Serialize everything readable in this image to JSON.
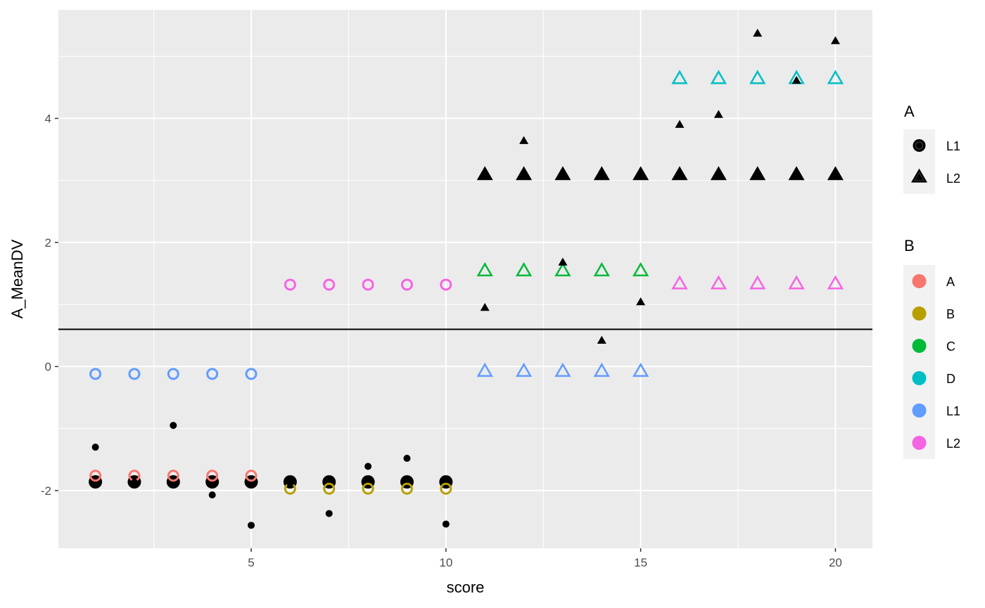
{
  "chart_data": {
    "type": "scatter",
    "xlabel": "score",
    "ylabel": "A_MeanDV",
    "xlim": [
      0.05,
      20.95
    ],
    "ylim": [
      -2.93,
      5.75
    ],
    "x_ticks": [
      5,
      10,
      15,
      20
    ],
    "y_ticks": [
      -2,
      0,
      2,
      4
    ],
    "grid": true,
    "reference_line_y": 0.6,
    "legend_position": "right",
    "legends": {
      "shape": {
        "title": "A",
        "items": [
          {
            "label": "L1",
            "shape": "circle"
          },
          {
            "label": "L2",
            "shape": "triangle"
          }
        ]
      },
      "color": {
        "title": "B",
        "items": [
          {
            "label": "A",
            "color": "#F8766D"
          },
          {
            "label": "B",
            "color": "#B79F00"
          },
          {
            "label": "C",
            "color": "#00BA38"
          },
          {
            "label": "D",
            "color": "#00BFC4"
          },
          {
            "label": "L1",
            "color": "#619CFF"
          },
          {
            "label": "L2",
            "color": "#F564E3"
          }
        ]
      }
    },
    "series": [
      {
        "role": "raw observations",
        "marker": "small-filled",
        "color": "#000000",
        "points": [
          {
            "x": 1,
            "y": -1.3,
            "A": "L1"
          },
          {
            "x": 2,
            "y": -1.87,
            "A": "L1"
          },
          {
            "x": 3,
            "y": -0.95,
            "A": "L1"
          },
          {
            "x": 4,
            "y": -2.07,
            "A": "L1"
          },
          {
            "x": 5,
            "y": -2.56,
            "A": "L1"
          },
          {
            "x": 6,
            "y": -1.88,
            "A": "L1"
          },
          {
            "x": 7,
            "y": -2.37,
            "A": "L1"
          },
          {
            "x": 8,
            "y": -1.61,
            "A": "L1"
          },
          {
            "x": 9,
            "y": -1.48,
            "A": "L1"
          },
          {
            "x": 10,
            "y": -2.54,
            "A": "L1"
          },
          {
            "x": 11,
            "y": 0.94,
            "A": "L2"
          },
          {
            "x": 12,
            "y": 3.63,
            "A": "L2"
          },
          {
            "x": 13,
            "y": 1.67,
            "A": "L2"
          },
          {
            "x": 14,
            "y": 0.41,
            "A": "L2"
          },
          {
            "x": 15,
            "y": 1.03,
            "A": "L2"
          },
          {
            "x": 16,
            "y": 3.89,
            "A": "L2"
          },
          {
            "x": 17,
            "y": 4.05,
            "A": "L2"
          },
          {
            "x": 18,
            "y": 5.36,
            "A": "L2"
          },
          {
            "x": 19,
            "y": 4.6,
            "A": "L2"
          },
          {
            "x": 20,
            "y": 5.24,
            "A": "L2"
          }
        ]
      },
      {
        "role": "mean by A",
        "marker": "large-filled",
        "color": "#000000",
        "points": [
          {
            "x": 1,
            "y": -1.86,
            "A": "L1"
          },
          {
            "x": 2,
            "y": -1.86,
            "A": "L1"
          },
          {
            "x": 3,
            "y": -1.86,
            "A": "L1"
          },
          {
            "x": 4,
            "y": -1.86,
            "A": "L1"
          },
          {
            "x": 5,
            "y": -1.86,
            "A": "L1"
          },
          {
            "x": 6,
            "y": -1.86,
            "A": "L1"
          },
          {
            "x": 7,
            "y": -1.86,
            "A": "L1"
          },
          {
            "x": 8,
            "y": -1.86,
            "A": "L1"
          },
          {
            "x": 9,
            "y": -1.86,
            "A": "L1"
          },
          {
            "x": 10,
            "y": -1.86,
            "A": "L1"
          },
          {
            "x": 11,
            "y": 3.08,
            "A": "L2"
          },
          {
            "x": 12,
            "y": 3.08,
            "A": "L2"
          },
          {
            "x": 13,
            "y": 3.08,
            "A": "L2"
          },
          {
            "x": 14,
            "y": 3.08,
            "A": "L2"
          },
          {
            "x": 15,
            "y": 3.08,
            "A": "L2"
          },
          {
            "x": 16,
            "y": 3.08,
            "A": "L2"
          },
          {
            "x": 17,
            "y": 3.08,
            "A": "L2"
          },
          {
            "x": 18,
            "y": 3.08,
            "A": "L2"
          },
          {
            "x": 19,
            "y": 3.08,
            "A": "L2"
          },
          {
            "x": 20,
            "y": 3.08,
            "A": "L2"
          }
        ]
      },
      {
        "role": "mean by B",
        "marker": "open",
        "points": [
          {
            "x": 1,
            "y": -1.76,
            "A": "L1",
            "B": "A"
          },
          {
            "x": 2,
            "y": -1.76,
            "A": "L1",
            "B": "A"
          },
          {
            "x": 3,
            "y": -1.76,
            "A": "L1",
            "B": "A"
          },
          {
            "x": 4,
            "y": -1.76,
            "A": "L1",
            "B": "A"
          },
          {
            "x": 5,
            "y": -1.76,
            "A": "L1",
            "B": "A"
          },
          {
            "x": 6,
            "y": -1.97,
            "A": "L1",
            "B": "B"
          },
          {
            "x": 7,
            "y": -1.97,
            "A": "L1",
            "B": "B"
          },
          {
            "x": 8,
            "y": -1.97,
            "A": "L1",
            "B": "B"
          },
          {
            "x": 9,
            "y": -1.97,
            "A": "L1",
            "B": "B"
          },
          {
            "x": 10,
            "y": -1.97,
            "A": "L1",
            "B": "B"
          },
          {
            "x": 11,
            "y": 1.53,
            "A": "L2",
            "B": "C"
          },
          {
            "x": 12,
            "y": 1.53,
            "A": "L2",
            "B": "C"
          },
          {
            "x": 13,
            "y": 1.53,
            "A": "L2",
            "B": "C"
          },
          {
            "x": 14,
            "y": 1.53,
            "A": "L2",
            "B": "C"
          },
          {
            "x": 15,
            "y": 1.53,
            "A": "L2",
            "B": "C"
          },
          {
            "x": 16,
            "y": 4.63,
            "A": "L2",
            "B": "D"
          },
          {
            "x": 17,
            "y": 4.63,
            "A": "L2",
            "B": "D"
          },
          {
            "x": 18,
            "y": 4.63,
            "A": "L2",
            "B": "D"
          },
          {
            "x": 19,
            "y": 4.63,
            "A": "L2",
            "B": "D"
          },
          {
            "x": 20,
            "y": 4.63,
            "A": "L2",
            "B": "D"
          }
        ]
      },
      {
        "role": "mean by B level",
        "marker": "open",
        "points": [
          {
            "x": 1,
            "y": -0.12,
            "A": "L1",
            "B": "L1"
          },
          {
            "x": 2,
            "y": -0.12,
            "A": "L1",
            "B": "L1"
          },
          {
            "x": 3,
            "y": -0.12,
            "A": "L1",
            "B": "L1"
          },
          {
            "x": 4,
            "y": -0.12,
            "A": "L1",
            "B": "L1"
          },
          {
            "x": 5,
            "y": -0.12,
            "A": "L1",
            "B": "L1"
          },
          {
            "x": 6,
            "y": 1.32,
            "A": "L1",
            "B": "L2"
          },
          {
            "x": 7,
            "y": 1.32,
            "A": "L1",
            "B": "L2"
          },
          {
            "x": 8,
            "y": 1.32,
            "A": "L1",
            "B": "L2"
          },
          {
            "x": 9,
            "y": 1.32,
            "A": "L1",
            "B": "L2"
          },
          {
            "x": 10,
            "y": 1.32,
            "A": "L1",
            "B": "L2"
          },
          {
            "x": 11,
            "y": -0.09,
            "A": "L2",
            "B": "L1"
          },
          {
            "x": 12,
            "y": -0.09,
            "A": "L2",
            "B": "L1"
          },
          {
            "x": 13,
            "y": -0.09,
            "A": "L2",
            "B": "L1"
          },
          {
            "x": 14,
            "y": -0.09,
            "A": "L2",
            "B": "L1"
          },
          {
            "x": 15,
            "y": -0.09,
            "A": "L2",
            "B": "L1"
          },
          {
            "x": 16,
            "y": 1.32,
            "A": "L2",
            "B": "L2"
          },
          {
            "x": 17,
            "y": 1.32,
            "A": "L2",
            "B": "L2"
          },
          {
            "x": 18,
            "y": 1.32,
            "A": "L2",
            "B": "L2"
          },
          {
            "x": 19,
            "y": 1.32,
            "A": "L2",
            "B": "L2"
          },
          {
            "x": 20,
            "y": 1.32,
            "A": "L2",
            "B": "L2"
          }
        ]
      }
    ]
  }
}
